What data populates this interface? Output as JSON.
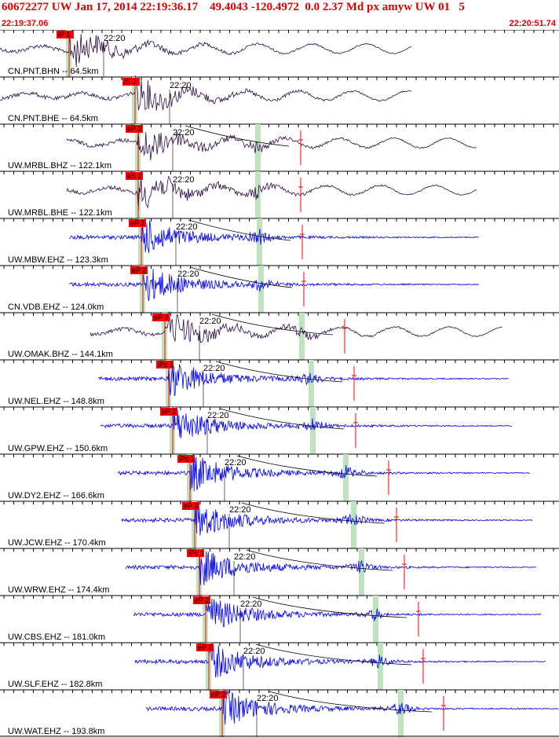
{
  "header": {
    "title": "60672277 UW Jan 17, 2014 22:19:36.17    49.4043 -120.4972  0.0 2.37 Md px amyw UW 01   5",
    "start_time": "22:19:37.06",
    "end_time": "22:20:51.74"
  },
  "colors": {
    "header_text": "#e00000",
    "broadband_trace": "#2a0a4a",
    "short_period_trace": "#0000ff",
    "pick_box": "#ff0000",
    "s_window": "#bfe3bf",
    "p_window": "#bfe3bf"
  },
  "minute_label": "22:20",
  "traces": [
    {
      "label": "CN.PNT.BHN -- 64.5km",
      "pick": "iP 1",
      "kind": "bb",
      "p": 88,
      "s": null,
      "start": 0,
      "end": 525
    },
    {
      "label": "CN.PNT.BHE -- 64.5km",
      "pick": "iS 2",
      "kind": "bb",
      "p": 172,
      "s": null,
      "start": 0,
      "end": 525
    },
    {
      "label": "UW.MRBL.BHZ -- 122.1km",
      "pick": "eP 2",
      "kind": "bb",
      "p": 176,
      "s": 328,
      "start": 85,
      "end": 608
    },
    {
      "label": "UW.MRBL.BHE -- 122.1km",
      "pick": "eS 2",
      "kind": "bb",
      "p": 176,
      "s": 328,
      "start": 85,
      "end": 608
    },
    {
      "label": "UW.MBW.EHZ -- 123.3km",
      "pick": "eP 2",
      "kind": "sp",
      "p": 180,
      "s": 330,
      "start": 88,
      "end": 610
    },
    {
      "label": "CN.VDB.EHZ -- 124.0km",
      "pick": "eP 2",
      "kind": "sp",
      "p": 182,
      "s": 332,
      "start": 88,
      "end": 610
    },
    {
      "label": "UW.OMAK.BHZ -- 144.1km",
      "pick": "eP 2",
      "kind": "bb",
      "p": 210,
      "s": 384,
      "start": 115,
      "end": 640
    },
    {
      "label": "UW.NEL.EHZ -- 148.8km",
      "pick": "iPc 1",
      "kind": "sp",
      "p": 215,
      "s": 396,
      "start": 125,
      "end": 648
    },
    {
      "label": "UW.GPW.EHZ -- 150.6km",
      "pick": "eP 2",
      "kind": "sp",
      "p": 220,
      "s": 398,
      "start": 128,
      "end": 652
    },
    {
      "label": "UW.DY2.EHZ -- 166.6km",
      "pick": "iPc 1",
      "kind": "sp",
      "p": 242,
      "s": 440,
      "start": 150,
      "end": 675
    },
    {
      "label": "UW.JCW.EHZ -- 170.4km",
      "pick": "eP 2",
      "kind": "sp",
      "p": 248,
      "s": 450,
      "start": 155,
      "end": 678
    },
    {
      "label": "UW.WRW.EHZ -- 174.4km",
      "pick": "iPc 1",
      "kind": "sp",
      "p": 254,
      "s": 460,
      "start": 160,
      "end": 683
    },
    {
      "label": "UW.CBS.EHZ -- 181.0km",
      "pick": "eP 2",
      "kind": "sp",
      "p": 262,
      "s": 478,
      "start": 170,
      "end": 690
    },
    {
      "label": "UW.SLF.EHZ -- 182.8km",
      "pick": "eP 2",
      "kind": "sp",
      "p": 266,
      "s": 484,
      "start": 172,
      "end": 695
    },
    {
      "label": "UW.WAT.EHZ -- 193.8km",
      "pick": "eP 2",
      "kind": "sp",
      "p": 283,
      "s": 510,
      "start": 186,
      "end": 712
    }
  ]
}
